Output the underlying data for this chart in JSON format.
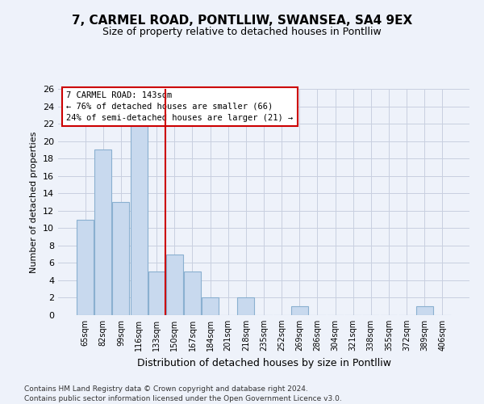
{
  "title": "7, CARMEL ROAD, PONTLLIW, SWANSEA, SA4 9EX",
  "subtitle": "Size of property relative to detached houses in Pontlliw",
  "xlabel": "Distribution of detached houses by size in Pontlliw",
  "ylabel": "Number of detached properties",
  "categories": [
    "65sqm",
    "82sqm",
    "99sqm",
    "116sqm",
    "133sqm",
    "150sqm",
    "167sqm",
    "184sqm",
    "201sqm",
    "218sqm",
    "235sqm",
    "252sqm",
    "269sqm",
    "286sqm",
    "304sqm",
    "321sqm",
    "338sqm",
    "355sqm",
    "372sqm",
    "389sqm",
    "406sqm"
  ],
  "values": [
    11,
    19,
    13,
    22,
    5,
    7,
    5,
    2,
    0,
    2,
    0,
    0,
    1,
    0,
    0,
    0,
    0,
    0,
    0,
    1,
    0
  ],
  "bar_color": "#c8d9ee",
  "bar_edge_color": "#8ab0d0",
  "red_line_x": 4.5,
  "annotation_line1": "7 CARMEL ROAD: 143sqm",
  "annotation_line2": "← 76% of detached houses are smaller (66)",
  "annotation_line3": "24% of semi-detached houses are larger (21) →",
  "annotation_box_color": "#ffffff",
  "annotation_box_edge": "#cc0000",
  "ylim": [
    0,
    26
  ],
  "yticks": [
    0,
    2,
    4,
    6,
    8,
    10,
    12,
    14,
    16,
    18,
    20,
    22,
    24,
    26
  ],
  "footer_line1": "Contains HM Land Registry data © Crown copyright and database right 2024.",
  "footer_line2": "Contains public sector information licensed under the Open Government Licence v3.0.",
  "bg_color": "#eef2fa",
  "grid_color": "#c8cfe0"
}
